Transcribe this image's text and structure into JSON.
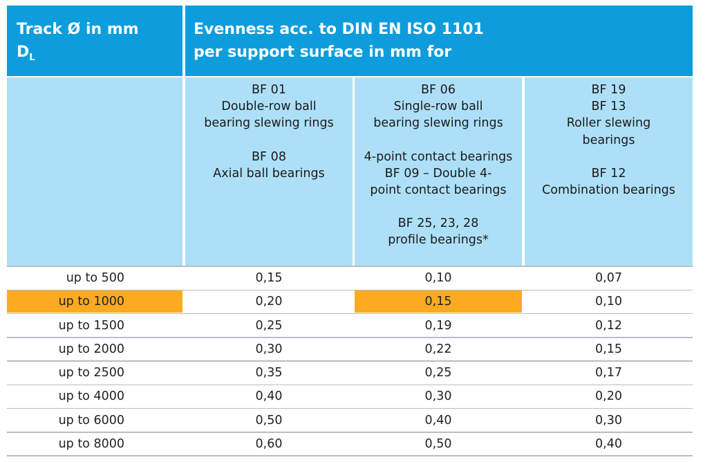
{
  "header": {
    "track_line1": "Track Ø in mm",
    "track_line2_main": "D",
    "track_line2_sub": "L",
    "evenness_line1": "Evenness acc. to DIN EN ISO 1101",
    "evenness_line2": "per support surface in mm for"
  },
  "columns": [
    {
      "lines": [
        "BF 01",
        "Double-row ball",
        "bearing slewing rings",
        "",
        "BF 08",
        "Axial ball bearings"
      ]
    },
    {
      "lines": [
        "BF 06",
        "Single-row ball",
        "bearing slewing rings",
        "",
        "4-point contact bearings",
        "BF 09 – Double 4-",
        "point contact bearings",
        "",
        "BF 25, 23, 28",
        "profile bearings*"
      ]
    },
    {
      "lines": [
        "BF 19",
        "BF 13",
        "Roller slewing",
        "bearings",
        "",
        "BF 12",
        "Combination bearings"
      ]
    }
  ],
  "rows": [
    {
      "track": "up to 500",
      "values": [
        "0,15",
        "0,10",
        "0,07"
      ]
    },
    {
      "track": "up to 1000",
      "values": [
        "0,20",
        "0,15",
        "0,10"
      ]
    },
    {
      "track": "up to 1500",
      "values": [
        "0,25",
        "0,19",
        "0,12"
      ]
    },
    {
      "track": "up to 2000",
      "values": [
        "0,30",
        "0,22",
        "0,15"
      ]
    },
    {
      "track": "up to 2500",
      "values": [
        "0,35",
        "0,25",
        "0,17"
      ]
    },
    {
      "track": "up to 4000",
      "values": [
        "0,40",
        "0,30",
        "0,20"
      ]
    },
    {
      "track": "up to 6000",
      "values": [
        "0,50",
        "0,40",
        "0,30"
      ]
    },
    {
      "track": "up to 8000",
      "values": [
        "0,60",
        "0,50",
        "0,40"
      ]
    }
  ],
  "colors": {
    "header": "#0d9ddd",
    "subheader": "#ade0f8",
    "highlight": "#fbaa21",
    "rule": "#b7bdc2"
  },
  "highlight": {
    "row": 1,
    "cells": [
      "track",
      "col2"
    ]
  }
}
